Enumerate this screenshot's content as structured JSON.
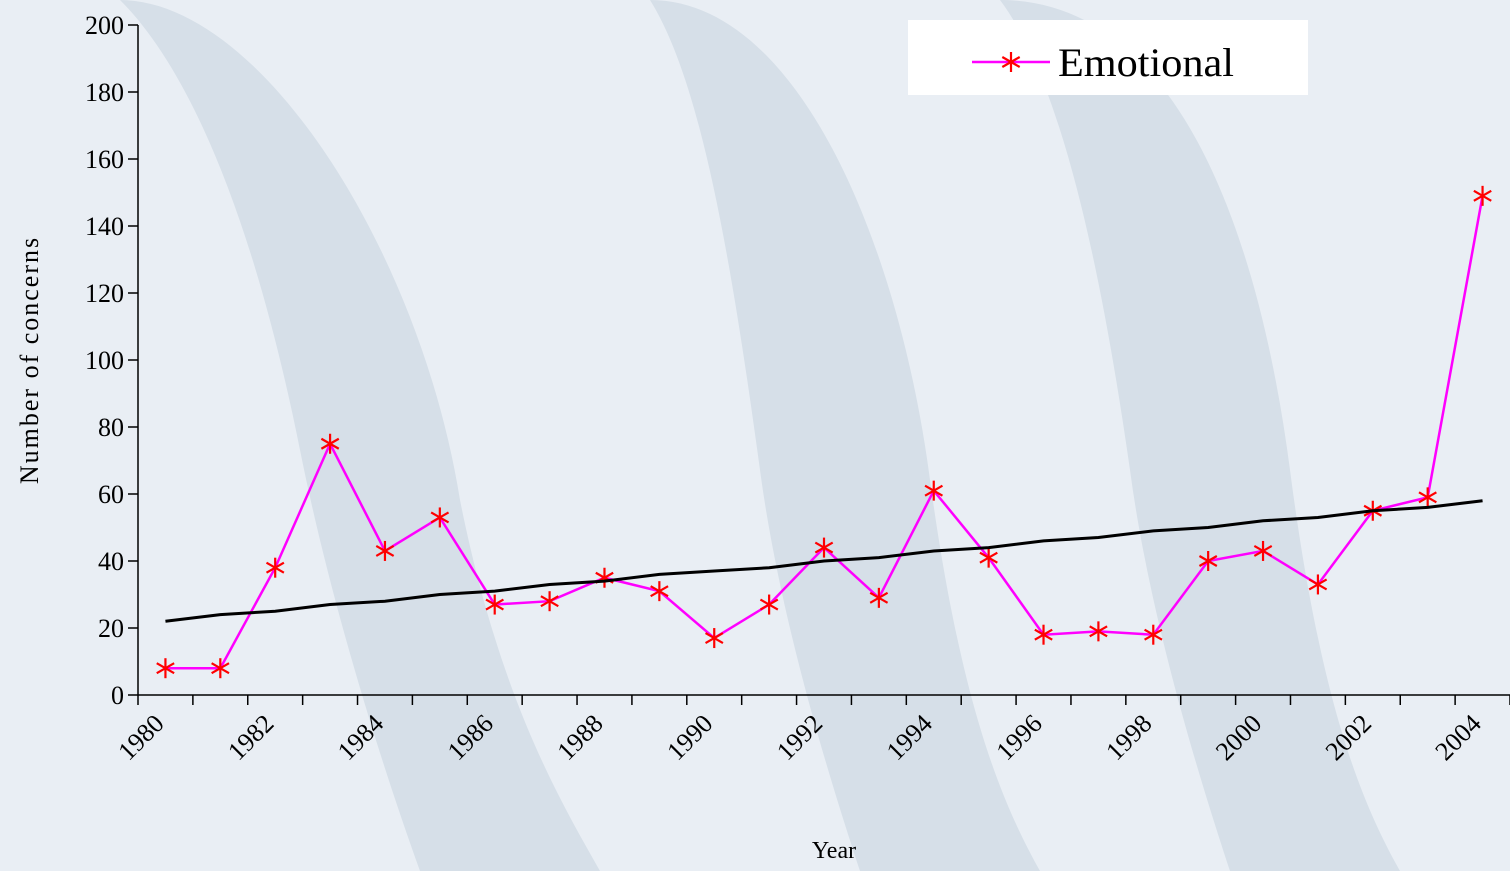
{
  "chart_data": {
    "type": "line",
    "x_label": "Year",
    "y_label": "Number of concerns",
    "categories": [
      "1980",
      null,
      "1982",
      null,
      "1984",
      null,
      "1986",
      null,
      "1988",
      null,
      "1990",
      null,
      "1992",
      null,
      "1994",
      null,
      "1996",
      null,
      "1998",
      null,
      "2000",
      null,
      "2002",
      null,
      "2004"
    ],
    "series": [
      {
        "name": "Emotional",
        "color": "#ff00ff",
        "marker_color": "#ff0000",
        "values": [
          8,
          8,
          38,
          75,
          43,
          53,
          27,
          28,
          35,
          31,
          17,
          27,
          44,
          29,
          61,
          41,
          18,
          19,
          18,
          40,
          43,
          33,
          55,
          59,
          149
        ]
      },
      {
        "color": "#000000",
        "values": [
          22,
          24,
          25,
          27,
          28,
          30,
          31,
          33,
          34,
          36,
          37,
          38,
          40,
          41,
          43,
          44,
          46,
          47,
          49,
          50,
          52,
          53,
          55,
          56,
          58
        ]
      }
    ],
    "ylim": [
      0,
      200
    ],
    "yticks": [
      0,
      20,
      40,
      60,
      80,
      100,
      120,
      140,
      160,
      180,
      200
    ],
    "legend": "top-right"
  }
}
